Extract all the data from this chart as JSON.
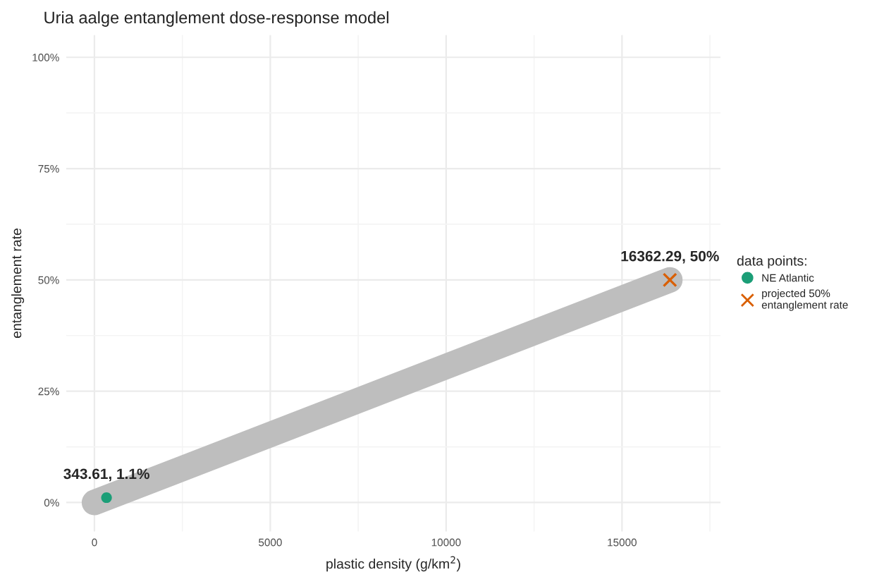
{
  "chart_data": {
    "type": "scatter",
    "title": "Uria aalge entanglement dose-response model",
    "xlabel": "plastic density (g/km$^{2}$)",
    "ylabel": "entanglement rate",
    "legend_title": "data points:",
    "series": [
      {
        "type": "line",
        "color": "#bebebe",
        "x": [
          0,
          16362.29
        ],
        "values": [
          0,
          50
        ],
        "marker": "none"
      },
      {
        "name": "NE Atlantic",
        "color": "#1b9e77",
        "x": [
          343.61
        ],
        "values": [
          1.1
        ],
        "marker": "circle"
      },
      {
        "name": "projected 50%\nentanglement rate",
        "color": "#d95f02",
        "x": [
          16362.29
        ],
        "values": [
          50
        ],
        "marker": "cross"
      }
    ],
    "annotations": [
      {
        "text": "343.61, 1.1%",
        "x": 343.61,
        "y": 1.1
      },
      {
        "text": "16362.29, 50%",
        "x": 16362.29,
        "y": 50
      }
    ],
    "xlim": [
      -800,
      17800
    ],
    "ylim": [
      -6.5,
      105
    ],
    "xticks": [
      0,
      5000,
      10000,
      15000
    ],
    "yticks": [
      {
        "value": 0,
        "label": "0%"
      },
      {
        "value": 25,
        "label": "25%"
      },
      {
        "value": 50,
        "label": "50%"
      },
      {
        "value": 75,
        "label": "75%"
      },
      {
        "value": 100,
        "label": "100%"
      }
    ],
    "grid": true,
    "legend": "right"
  }
}
